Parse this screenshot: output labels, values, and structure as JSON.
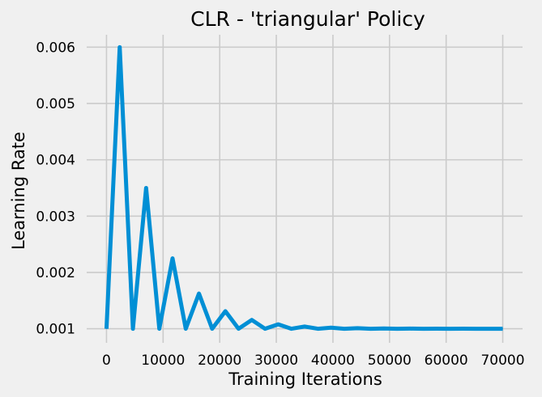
{
  "chart_data": {
    "type": "line",
    "title": "CLR - 'triangular' Policy",
    "xlabel": "Training Iterations",
    "ylabel": "Learning Rate",
    "xlim": [
      -3500,
      73500
    ],
    "ylim": [
      0.00075,
      0.00622
    ],
    "xticks": [
      0,
      10000,
      20000,
      30000,
      40000,
      50000,
      60000,
      70000
    ],
    "xtick_labels": [
      "0",
      "10000",
      "20000",
      "30000",
      "40000",
      "50000",
      "60000",
      "70000"
    ],
    "yticks": [
      0.001,
      0.002,
      0.003,
      0.004,
      0.005,
      0.006
    ],
    "ytick_labels": [
      "0.001",
      "0.002",
      "0.003",
      "0.004",
      "0.005",
      "0.006"
    ],
    "grid": true,
    "series": [
      {
        "color": "#008fd5",
        "x": [
          0,
          2333,
          4667,
          7000,
          9333,
          11667,
          14000,
          16333,
          18667,
          21000,
          23333,
          25667,
          28000,
          30333,
          32667,
          35000,
          37333,
          39667,
          42000,
          44333,
          46667,
          49000,
          51333,
          53667,
          56000,
          58333,
          60667,
          63000,
          65333,
          67667,
          70000
        ],
        "y": [
          0.001,
          0.006,
          0.001,
          0.0035,
          0.001,
          0.00225,
          0.001,
          0.001625,
          0.001,
          0.0013125,
          0.001,
          0.00115625,
          0.001,
          0.00107813,
          0.001,
          0.00103906,
          0.001,
          0.00101953,
          0.001,
          0.00100977,
          0.001,
          0.00100488,
          0.001,
          0.00100244,
          0.001,
          0.00100122,
          0.001,
          0.00100061,
          0.001,
          0.0010003,
          0.001
        ]
      }
    ]
  }
}
